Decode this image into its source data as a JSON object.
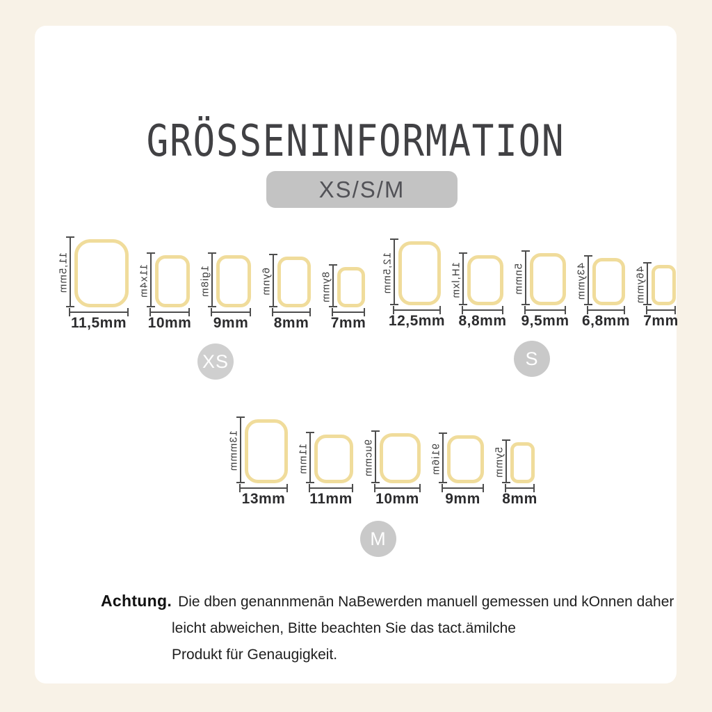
{
  "title": "GRÖSSENINFORMATION",
  "pill_label": "XS/S/M",
  "colors": {
    "background": "#f8f2e7",
    "card": "#ffffff",
    "nail_outline": "#f0dc9b",
    "pill_bg": "#c3c3c3",
    "badge_bg": "#c9c9c9",
    "ruler": "#4d4d4d",
    "title_text": "#414144"
  },
  "groups": [
    {
      "badge": "XS",
      "items": [
        {
          "width_label": "11,5mm",
          "side_label": "11,5mm",
          "nail_w": 78,
          "nail_h": 98
        },
        {
          "width_label": "10mm",
          "side_label": "11x4m",
          "nail_w": 50,
          "nail_h": 75
        },
        {
          "width_label": "9mm",
          "side_label": "1gi8m",
          "nail_w": 50,
          "nail_h": 75
        },
        {
          "width_label": "8mm",
          "side_label": "6ynm",
          "nail_w": 48,
          "nail_h": 73
        },
        {
          "width_label": "7mm",
          "side_label": "8ymm",
          "nail_w": 40,
          "nail_h": 58
        }
      ]
    },
    {
      "badge": "S",
      "items": [
        {
          "width_label": "12,5mm",
          "side_label": "12,5mm",
          "nail_w": 61,
          "nail_h": 92
        },
        {
          "width_label": "8,8mm",
          "side_label": "1H,lxm",
          "nail_w": 52,
          "nail_h": 72
        },
        {
          "width_label": "9,5mm",
          "side_label": "5nmm",
          "nail_w": 52,
          "nail_h": 75
        },
        {
          "width_label": "6,8mm",
          "side_label": "43ymm",
          "nail_w": 47,
          "nail_h": 68
        },
        {
          "width_label": "7mm",
          "side_label": "46ymm",
          "nail_w": 35,
          "nail_h": 58
        }
      ]
    },
    {
      "badge": "M",
      "items": [
        {
          "width_label": "13mm",
          "side_label": "13mmm",
          "nail_w": 62,
          "nail_h": 92
        },
        {
          "width_label": "11mm",
          "side_label": "11mm",
          "nail_w": 56,
          "nail_h": 70
        },
        {
          "width_label": "10mm",
          "side_label": "9ucmm",
          "nail_w": 59,
          "nail_h": 72
        },
        {
          "width_label": "9mm",
          "side_label": "91i6m",
          "nail_w": 53,
          "nail_h": 69
        },
        {
          "width_label": "8mm",
          "side_label": "5ymm",
          "nail_w": 35,
          "nail_h": 59
        }
      ]
    }
  ],
  "note": {
    "title": "Achtung.",
    "lines": [
      "Die dben genannmenān NaBewerden manuell gemessen und kOnnen daher",
      "leicht abweichen, Bitte beachten Sie das tact.ämilche",
      "Produkt für Genaugigkeit."
    ]
  }
}
